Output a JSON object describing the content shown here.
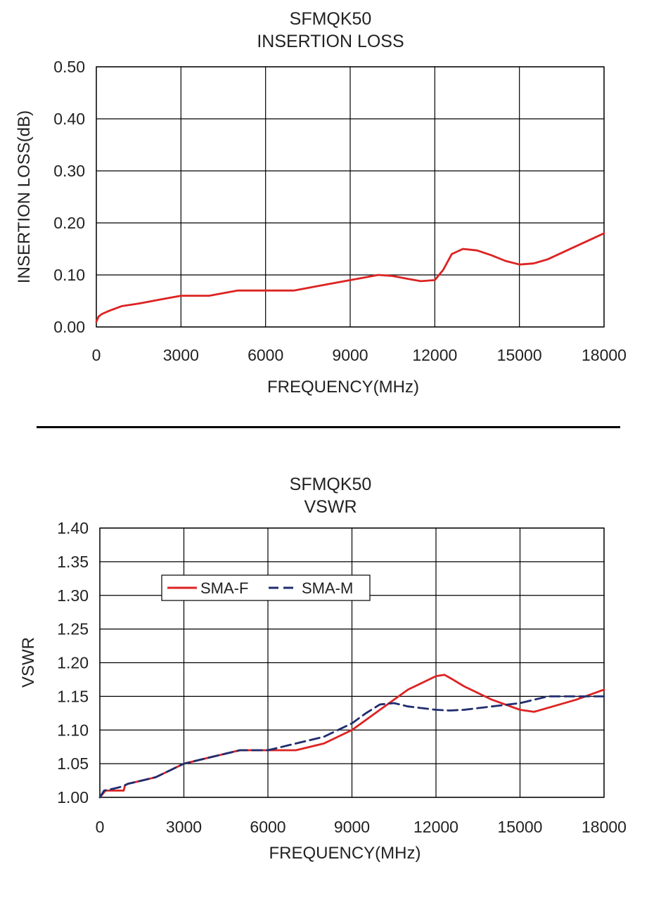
{
  "chart_data": [
    {
      "type": "line",
      "title": "SFMQK50",
      "subtitle": "INSERTION LOSS",
      "xlabel": "FREQUENCY(MHz)",
      "ylabel": "INSERTION LOSS(dB)",
      "xlim": [
        0,
        18000
      ],
      "ylim": [
        0,
        0.5
      ],
      "xticks": [
        "0",
        "3000",
        "6000",
        "9000",
        "12000",
        "15000",
        "18000"
      ],
      "yticks": [
        "0.00",
        "0.10",
        "0.20",
        "0.30",
        "0.40",
        "0.50"
      ],
      "grid": true,
      "series": [
        {
          "color": "#dd2222",
          "dash": "solid",
          "x": [
            0,
            80,
            200,
            500,
            900,
            1500,
            2200,
            3000,
            4000,
            5000,
            6000,
            7000,
            8000,
            9000,
            9500,
            10000,
            10500,
            11000,
            11500,
            12000,
            12300,
            12600,
            13000,
            13500,
            14000,
            14500,
            15000,
            15500,
            16000,
            17000,
            18000
          ],
          "y": [
            0.01,
            0.02,
            0.025,
            0.032,
            0.04,
            0.045,
            0.052,
            0.06,
            0.06,
            0.07,
            0.07,
            0.07,
            0.08,
            0.09,
            0.095,
            0.1,
            0.098,
            0.093,
            0.088,
            0.09,
            0.11,
            0.14,
            0.15,
            0.147,
            0.138,
            0.127,
            0.12,
            0.122,
            0.13,
            0.155,
            0.18
          ]
        }
      ]
    },
    {
      "type": "line",
      "title": "SFMQK50",
      "subtitle": "VSWR",
      "xlabel": "FREQUENCY(MHz)",
      "ylabel": "VSWR",
      "xlim": [
        0,
        18000
      ],
      "ylim": [
        1.0,
        1.4
      ],
      "xticks": [
        "0",
        "3000",
        "6000",
        "9000",
        "12000",
        "15000",
        "18000"
      ],
      "yticks": [
        "1.00",
        "1.05",
        "1.10",
        "1.15",
        "1.20",
        "1.25",
        "1.30",
        "1.35",
        "1.40"
      ],
      "grid": true,
      "legend": "upper-left",
      "series": [
        {
          "name": "SMA-F",
          "color": "#dd2222",
          "dash": "solid",
          "x": [
            0,
            100,
            200,
            400,
            700,
            850,
            900,
            1000,
            1500,
            2000,
            2500,
            3000,
            4000,
            5000,
            6000,
            7000,
            8000,
            9000,
            10000,
            11000,
            11500,
            12000,
            12300,
            12600,
            13000,
            14000,
            15000,
            15500,
            16000,
            17000,
            18000
          ],
          "y": [
            1.0,
            1.005,
            1.01,
            1.01,
            1.01,
            1.01,
            1.018,
            1.02,
            1.025,
            1.03,
            1.04,
            1.05,
            1.06,
            1.07,
            1.07,
            1.07,
            1.08,
            1.1,
            1.13,
            1.16,
            1.17,
            1.18,
            1.182,
            1.175,
            1.165,
            1.145,
            1.13,
            1.127,
            1.133,
            1.145,
            1.16
          ]
        },
        {
          "name": "SMA-M",
          "color": "#1f2d6e",
          "dash": "dashed",
          "x": [
            0,
            150,
            400,
            700,
            900,
            1000,
            1500,
            2000,
            2500,
            3000,
            4000,
            5000,
            6000,
            7000,
            8000,
            9000,
            9500,
            10000,
            10500,
            11000,
            12000,
            12500,
            13000,
            14000,
            15000,
            16000,
            17000,
            18000
          ],
          "y": [
            1.0,
            1.01,
            1.012,
            1.015,
            1.018,
            1.02,
            1.025,
            1.03,
            1.04,
            1.05,
            1.06,
            1.07,
            1.07,
            1.08,
            1.09,
            1.11,
            1.125,
            1.138,
            1.14,
            1.135,
            1.13,
            1.129,
            1.13,
            1.135,
            1.14,
            1.15,
            1.15,
            1.15
          ]
        }
      ]
    }
  ]
}
